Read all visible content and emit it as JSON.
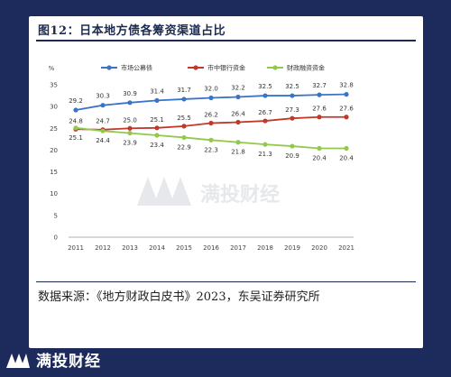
{
  "figure": {
    "title": "图12：日本地方债各筹资渠道占比",
    "source": "数据来源：《地方财政白皮书》2023，东吴证券研究所"
  },
  "brand": {
    "watermark": "满投财经",
    "footer_name": "满投财经"
  },
  "colors": {
    "background": "#1d2a5c",
    "series_1": "#3a74c9",
    "series_2": "#c0392b",
    "series_3": "#92c94a"
  },
  "chart_data": {
    "type": "line",
    "x": [
      "2011",
      "2012",
      "2013",
      "2014",
      "2015",
      "2016",
      "2017",
      "2018",
      "2019",
      "2020",
      "2021"
    ],
    "ylabel": "%",
    "ylim": [
      0,
      35
    ],
    "yticks": [
      0,
      5,
      10,
      15,
      20,
      25,
      30,
      35
    ],
    "grid": false,
    "legend_position": "top",
    "series": [
      {
        "name": "市场公募债",
        "color": "#3a74c9",
        "values": [
          29.2,
          30.3,
          30.9,
          31.4,
          31.7,
          32.0,
          32.2,
          32.5,
          32.5,
          32.7,
          32.8
        ]
      },
      {
        "name": "市中银行资金",
        "color": "#c0392b",
        "values": [
          24.8,
          24.7,
          25.0,
          25.1,
          25.5,
          26.2,
          26.4,
          26.7,
          27.3,
          27.6,
          27.6
        ]
      },
      {
        "name": "财政融资资金",
        "color": "#92c94a",
        "values": [
          25.1,
          24.4,
          23.9,
          23.4,
          22.9,
          22.3,
          21.8,
          21.3,
          20.9,
          20.4,
          20.4
        ]
      }
    ]
  }
}
